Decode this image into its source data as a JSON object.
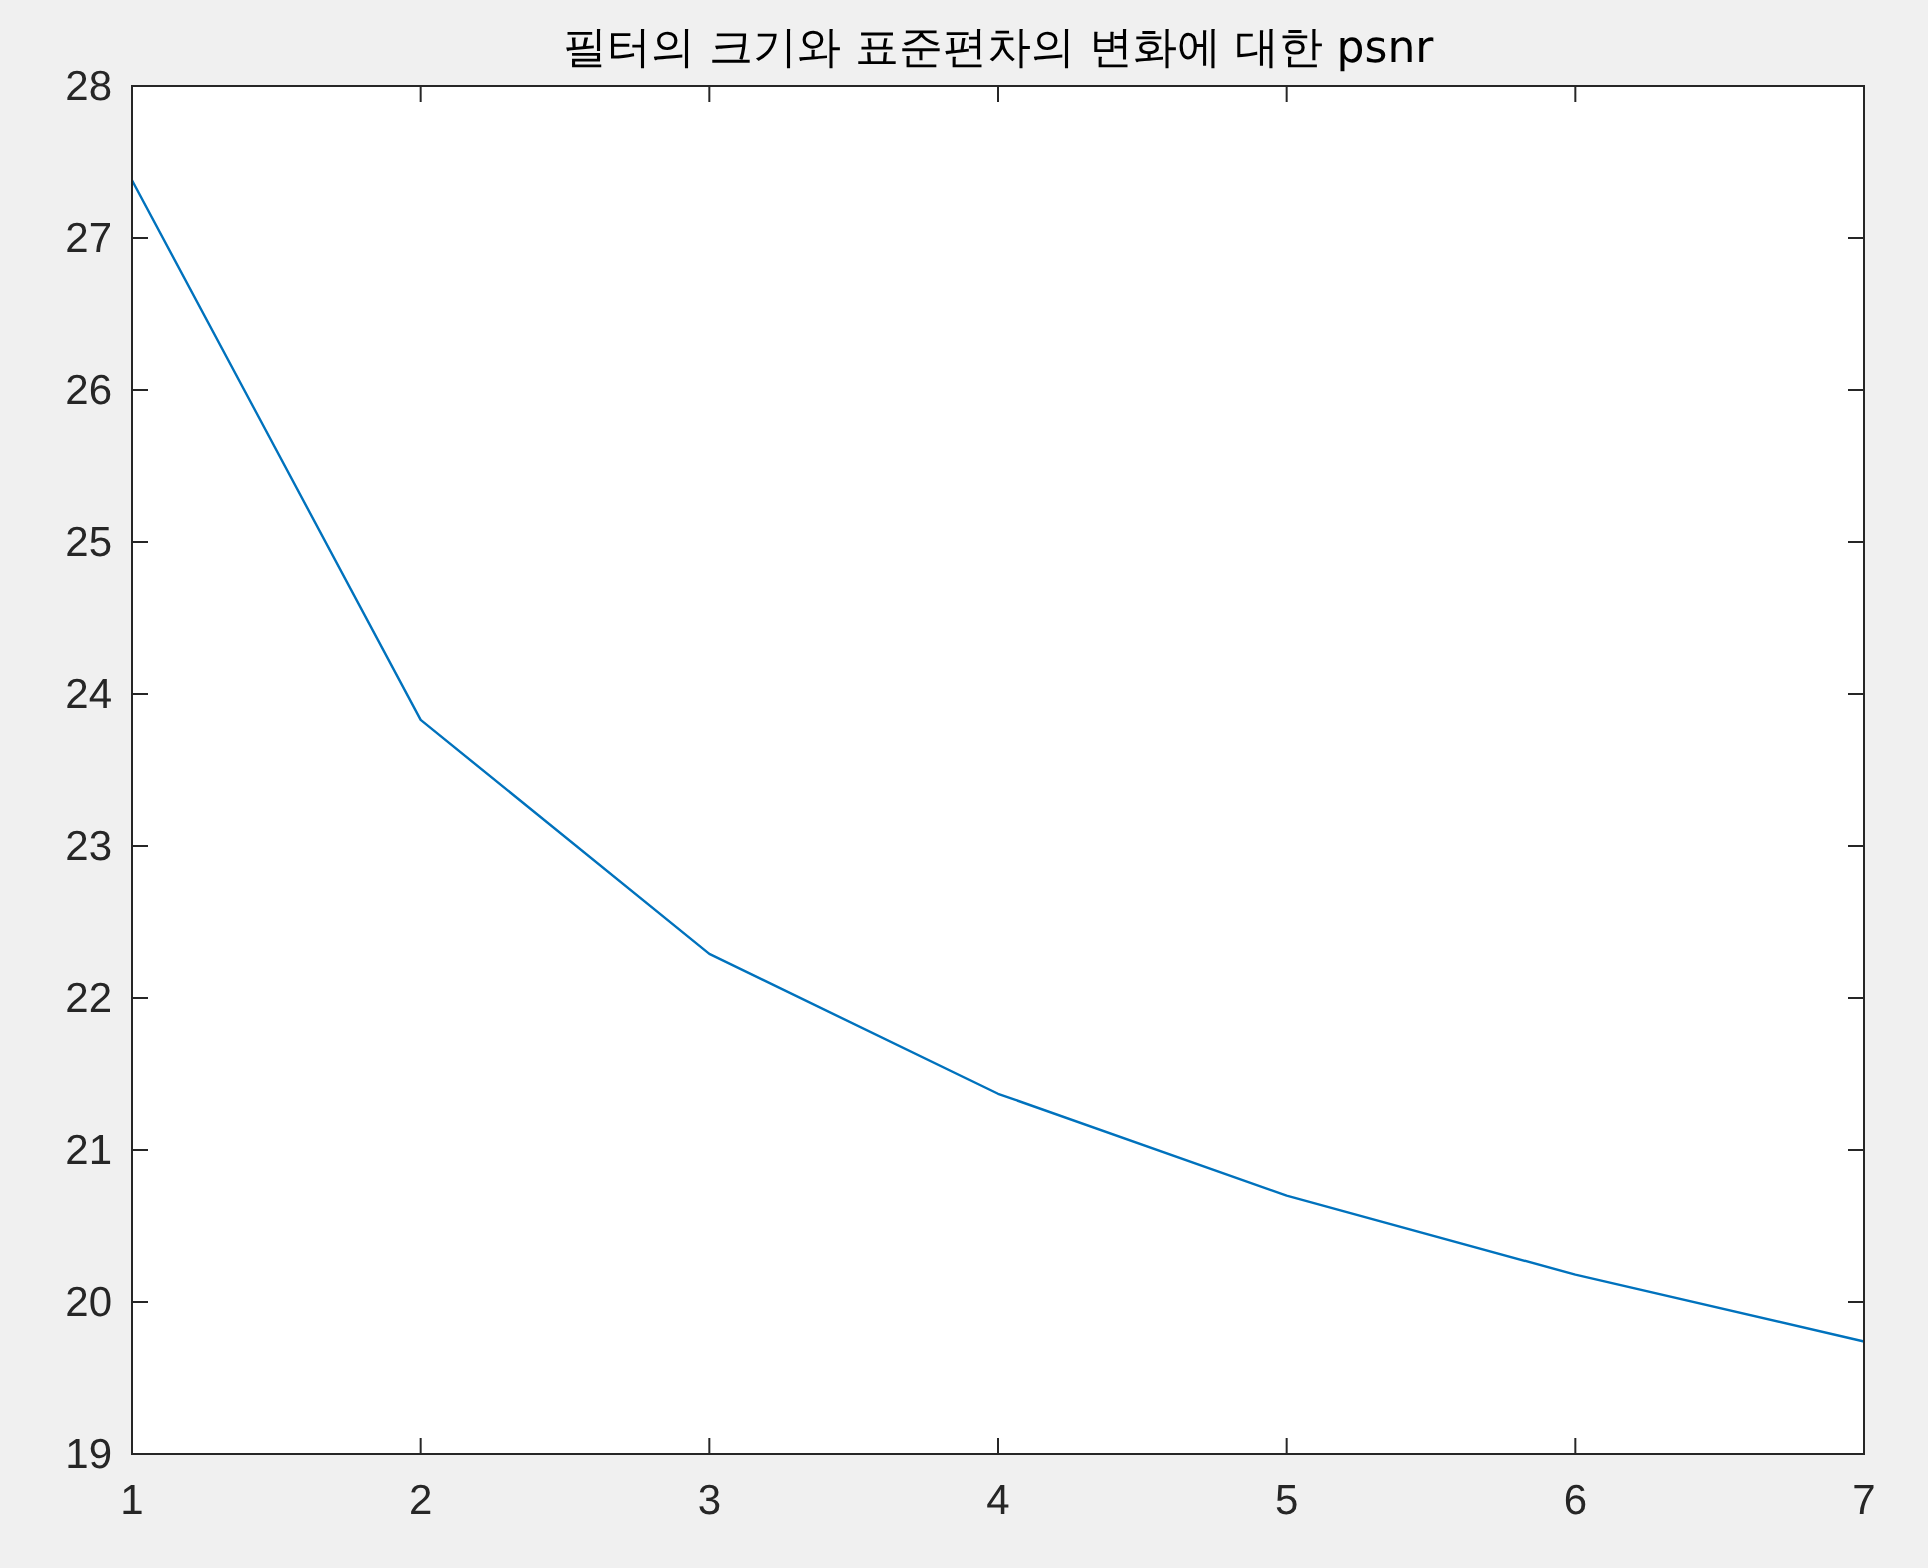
{
  "chart_data": {
    "type": "line",
    "title": "필터의 크기와 표준편차의 변화에 대한 psnr",
    "x": [
      1,
      2,
      3,
      4,
      5,
      6,
      7
    ],
    "series": [
      {
        "color": "#0072bd",
        "values": [
          27.38,
          23.83,
          22.29,
          21.37,
          20.7,
          20.18,
          19.74
        ]
      }
    ],
    "xlim": [
      1,
      7
    ],
    "xticks": [
      1,
      2,
      3,
      4,
      5,
      6,
      7
    ],
    "ylim": [
      19,
      28
    ],
    "yticks": [
      19,
      20,
      21,
      22,
      23,
      24,
      25,
      26,
      27,
      28
    ],
    "grid": false,
    "marker": "none",
    "line_style": "solid"
  }
}
